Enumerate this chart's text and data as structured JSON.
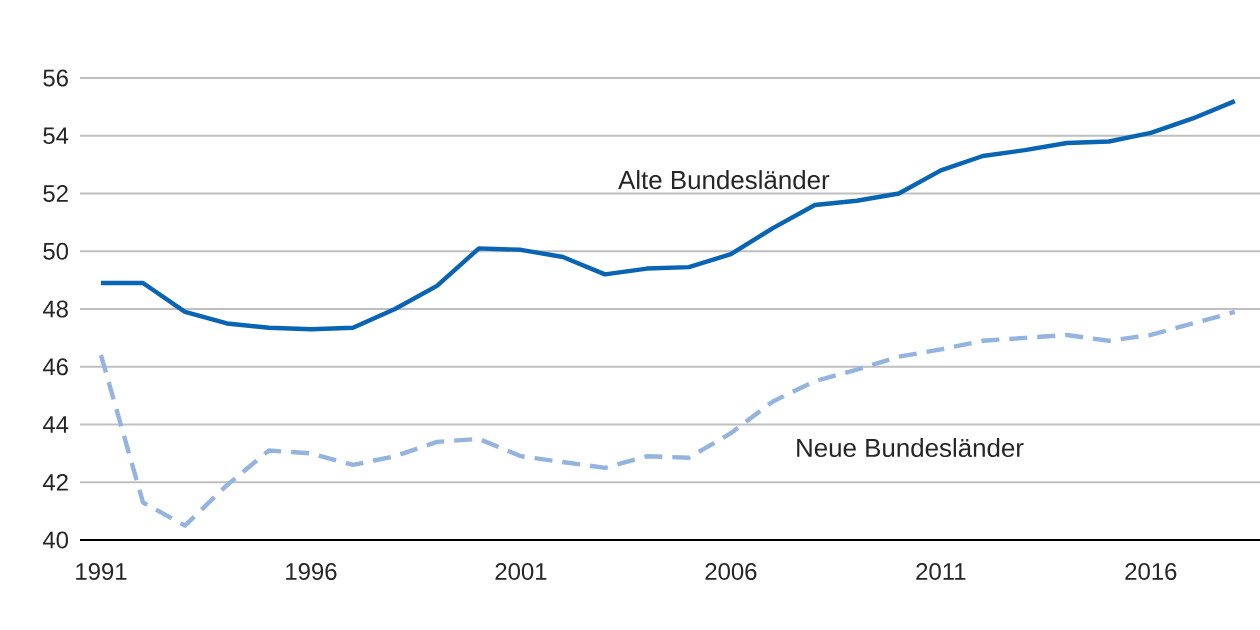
{
  "chart_data": {
    "type": "line",
    "x": [
      1991,
      1992,
      1993,
      1994,
      1995,
      1996,
      1997,
      1998,
      1999,
      2000,
      2001,
      2002,
      2003,
      2004,
      2005,
      2006,
      2007,
      2008,
      2009,
      2010,
      2011,
      2012,
      2013,
      2014,
      2015,
      2016,
      2017,
      2018
    ],
    "series": [
      {
        "name": "Alte Bundesländer",
        "color": "#0a64b4",
        "line_style": "solid",
        "values": [
          48.9,
          48.9,
          47.9,
          47.5,
          47.35,
          47.3,
          47.35,
          48.0,
          48.8,
          50.1,
          50.05,
          49.8,
          49.2,
          49.4,
          49.45,
          49.9,
          50.8,
          51.6,
          51.75,
          52.0,
          52.8,
          53.3,
          53.5,
          53.75,
          53.8,
          54.1,
          54.6,
          55.2
        ]
      },
      {
        "name": "Neue Bundesländer",
        "color": "#94b4e0",
        "line_style": "dashed",
        "values": [
          46.4,
          41.3,
          40.5,
          41.9,
          43.1,
          43.0,
          42.6,
          42.9,
          43.4,
          43.5,
          42.9,
          42.7,
          42.5,
          42.9,
          42.85,
          43.7,
          44.8,
          45.5,
          45.9,
          46.35,
          46.6,
          46.9,
          47.0,
          47.1,
          46.9,
          47.1,
          47.5,
          47.9
        ]
      }
    ],
    "xlim": [
      1990.5,
      2018.6
    ],
    "ylim": [
      40,
      56
    ],
    "xticks": [
      1991,
      1996,
      2001,
      2006,
      2011,
      2016
    ],
    "yticks": [
      40,
      42,
      44,
      46,
      48,
      50,
      52,
      54,
      56
    ],
    "grid": "y",
    "legend": false,
    "marker": "none"
  }
}
